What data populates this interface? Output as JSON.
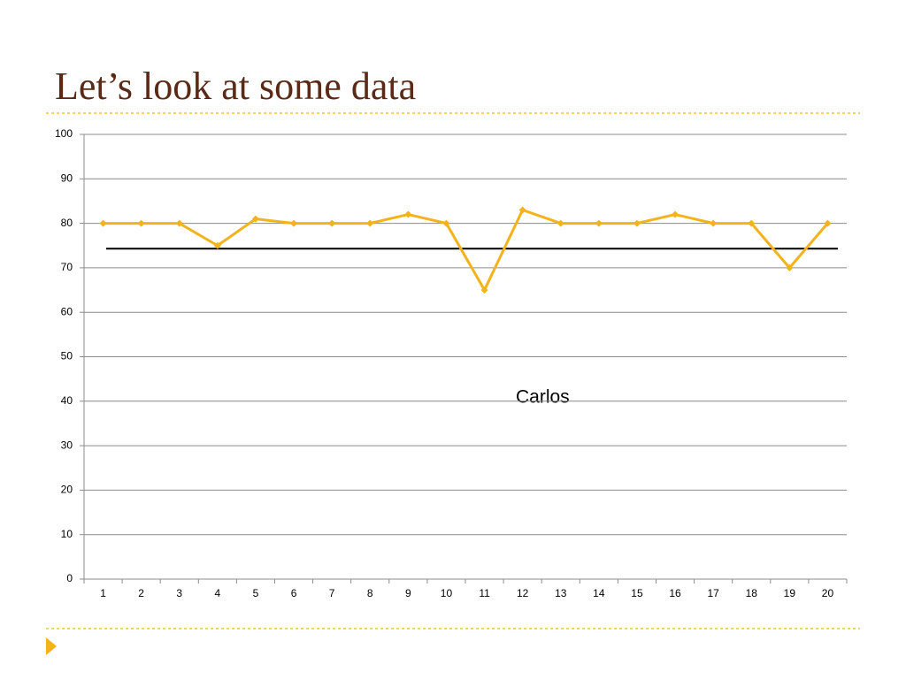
{
  "slide": {
    "title": "Let’s look at some data"
  },
  "chart_data": {
    "type": "line",
    "categories": [
      "1",
      "2",
      "3",
      "4",
      "5",
      "6",
      "7",
      "8",
      "9",
      "10",
      "11",
      "12",
      "13",
      "14",
      "15",
      "16",
      "17",
      "18",
      "19",
      "20"
    ],
    "series": [
      {
        "color": "#f4b21c",
        "values": [
          80,
          80,
          80,
          75,
          81,
          80,
          80,
          80,
          82,
          80,
          65,
          83,
          80,
          80,
          80,
          82,
          80,
          80,
          70,
          80
        ]
      }
    ],
    "hline": 74.3,
    "ylim": [
      0,
      100
    ],
    "yticks": [
      0,
      10,
      20,
      30,
      40,
      50,
      60,
      70,
      80,
      90,
      100
    ],
    "grid": true,
    "annotations": [
      "Carlos"
    ]
  }
}
